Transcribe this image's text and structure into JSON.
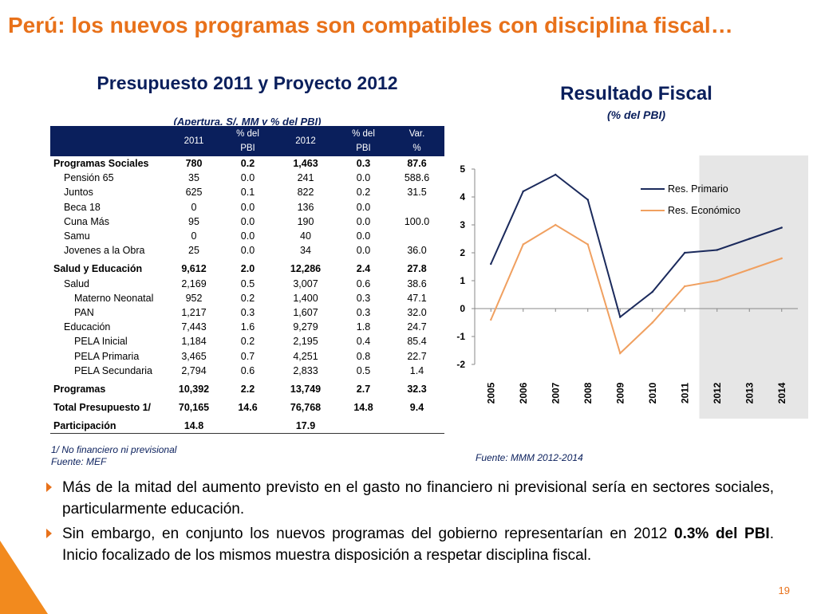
{
  "slide": {
    "title": "Perú: los nuevos programas son compatibles con disciplina fiscal…",
    "page_number": "19",
    "accent_color": "#E8711A",
    "navy_color": "#0A1F5C"
  },
  "table": {
    "title": "Presupuesto 2011 y Proyecto 2012",
    "subtitle": "(Apertura, S/. MM y % del PBI)",
    "headers": [
      {
        "l1": "",
        "l2": ""
      },
      {
        "l1": "2011",
        "l2": ""
      },
      {
        "l1": "% del",
        "l2": "PBI"
      },
      {
        "l1": "2012",
        "l2": ""
      },
      {
        "l1": "% del",
        "l2": "PBI"
      },
      {
        "l1": "Var.",
        "l2": "%"
      }
    ],
    "rows": [
      {
        "label": "Programas Sociales",
        "v2011": "780",
        "p2011": "0.2",
        "v2012": "1,463",
        "p2012": "0.3",
        "var": "87.6",
        "style": "bold",
        "indent": 0
      },
      {
        "label": "Pensión 65",
        "v2011": "35",
        "p2011": "0.0",
        "v2012": "241",
        "p2012": "0.0",
        "var": "588.6",
        "style": "normal",
        "indent": 1
      },
      {
        "label": "Juntos",
        "v2011": "625",
        "p2011": "0.1",
        "v2012": "822",
        "p2012": "0.2",
        "var": "31.5",
        "style": "normal",
        "indent": 1
      },
      {
        "label": "Beca 18",
        "v2011": "0",
        "p2011": "0.0",
        "v2012": "136",
        "p2012": "0.0",
        "var": "",
        "style": "normal",
        "indent": 1
      },
      {
        "label": "Cuna Más",
        "v2011": "95",
        "p2011": "0.0",
        "v2012": "190",
        "p2012": "0.0",
        "var": "100.0",
        "style": "normal",
        "indent": 1
      },
      {
        "label": "Samu",
        "v2011": "0",
        "p2011": "0.0",
        "v2012": "40",
        "p2012": "0.0",
        "var": "",
        "style": "normal",
        "indent": 1
      },
      {
        "label": "Jovenes a la Obra",
        "v2011": "25",
        "p2011": "0.0",
        "v2012": "34",
        "p2012": "0.0",
        "var": "36.0",
        "style": "normal",
        "indent": 1
      },
      {
        "label": "Salud y Educación",
        "v2011": "9,612",
        "p2011": "2.0",
        "v2012": "12,286",
        "p2012": "2.4",
        "var": "27.8",
        "style": "bold",
        "indent": 0
      },
      {
        "label": "Salud",
        "v2011": "2,169",
        "p2011": "0.5",
        "v2012": "3,007",
        "p2012": "0.6",
        "var": "38.6",
        "style": "normal",
        "indent": 1
      },
      {
        "label": "Materno Neonatal",
        "v2011": "952",
        "p2011": "0.2",
        "v2012": "1,400",
        "p2012": "0.3",
        "var": "47.1",
        "style": "normal",
        "indent": 2
      },
      {
        "label": "PAN",
        "v2011": "1,217",
        "p2011": "0.3",
        "v2012": "1,607",
        "p2012": "0.3",
        "var": "32.0",
        "style": "normal",
        "indent": 2
      },
      {
        "label": "Educación",
        "v2011": "7,443",
        "p2011": "1.6",
        "v2012": "9,279",
        "p2012": "1.8",
        "var": "24.7",
        "style": "normal",
        "indent": 1
      },
      {
        "label": "PELA Inicial",
        "v2011": "1,184",
        "p2011": "0.2",
        "v2012": "2,195",
        "p2012": "0.4",
        "var": "85.4",
        "style": "normal",
        "indent": 2
      },
      {
        "label": "PELA Primaria",
        "v2011": "3,465",
        "p2011": "0.7",
        "v2012": "4,251",
        "p2012": "0.8",
        "var": "22.7",
        "style": "normal",
        "indent": 2
      },
      {
        "label": "PELA Secundaria",
        "v2011": "2,794",
        "p2011": "0.6",
        "v2012": "2,833",
        "p2012": "0.5",
        "var": "1.4",
        "style": "normal",
        "indent": 2
      },
      {
        "label": "Programas",
        "v2011": "10,392",
        "p2011": "2.2",
        "v2012": "13,749",
        "p2012": "2.7",
        "var": "32.3",
        "style": "bold",
        "indent": 0
      },
      {
        "label": "Total Presupuesto 1/",
        "v2011": "70,165",
        "p2011": "14.6",
        "v2012": "76,768",
        "p2012": "14.8",
        "var": "9.4",
        "style": "bold",
        "indent": 0
      },
      {
        "label": "Participación",
        "v2011": "14.8",
        "p2011": "",
        "v2012": "17.9",
        "p2012": "",
        "var": "",
        "style": "bold",
        "indent": 0
      }
    ],
    "footnote": "1/ No financiero ni previsional",
    "source": "Fuente: MEF"
  },
  "chart_data": {
    "type": "line",
    "title": "Resultado Fiscal",
    "subtitle": "(% del PBI)",
    "x": [
      "2005",
      "2006",
      "2007",
      "2008",
      "2009",
      "2010",
      "2011",
      "2012",
      "2013",
      "2014"
    ],
    "ylim": [
      -2,
      5
    ],
    "yticks": [
      "5",
      "4",
      "3",
      "2",
      "1",
      "0",
      "-1",
      "-2"
    ],
    "projection_shading_from": "2012",
    "legend_position": "top-right",
    "series": [
      {
        "name": "Res. Primario",
        "color": "#1B2A5C",
        "values": [
          1.6,
          4.2,
          4.8,
          3.9,
          -0.3,
          0.6,
          2.0,
          2.1,
          2.5,
          2.9
        ]
      },
      {
        "name": "Res. Económico",
        "color": "#F0A060",
        "values": [
          -0.4,
          2.3,
          3.0,
          2.3,
          -1.6,
          -0.5,
          0.8,
          1.0,
          1.4,
          1.8
        ]
      }
    ],
    "source": "Fuente: MMM 2012-2014"
  },
  "bullets": [
    {
      "text": "Más de la mitad del aumento previsto en el gasto no financiero ni previsional sería en sectores sociales, particularmente educación.",
      "pre": "",
      "bold": "",
      "post": ""
    },
    {
      "text": "",
      "pre": "Sin embargo, en conjunto los nuevos programas del gobierno representarían en 2012 ",
      "bold": "0.3% del PBI",
      "post": ". Inicio focalizado de los mismos muestra disposición a respetar disciplina fiscal."
    }
  ]
}
